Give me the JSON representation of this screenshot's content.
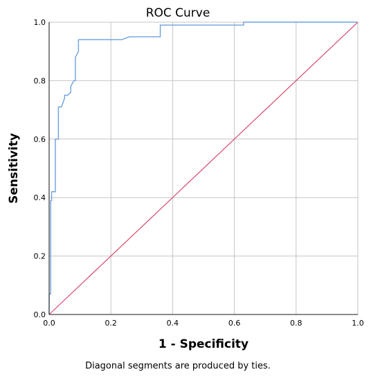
{
  "chart_data": {
    "type": "line",
    "title": "ROC Curve",
    "xlabel": "1 - Specificity",
    "ylabel": "Sensitivity",
    "xlim": [
      0.0,
      1.0
    ],
    "ylim": [
      0.0,
      1.0
    ],
    "x_ticks": [
      "0.0",
      "0.2",
      "0.4",
      "0.6",
      "0.8",
      "1.0"
    ],
    "y_ticks": [
      "0.0",
      "0.2",
      "0.4",
      "0.6",
      "0.8",
      "1.0"
    ],
    "grid": true,
    "footnote": "Diagonal segments are produced by ties.",
    "series": [
      {
        "color": "#6fa0dc",
        "x": [
          0.0,
          0.0,
          0.005,
          0.005,
          0.008,
          0.008,
          0.02,
          0.02,
          0.03,
          0.03,
          0.04,
          0.05,
          0.05,
          0.06,
          0.07,
          0.07,
          0.08,
          0.085,
          0.085,
          0.095,
          0.095,
          0.235,
          0.26,
          0.36,
          0.36,
          0.62,
          0.63,
          0.63,
          1.0
        ],
        "y": [
          0.0,
          0.07,
          0.07,
          0.39,
          0.39,
          0.42,
          0.42,
          0.6,
          0.6,
          0.71,
          0.71,
          0.74,
          0.75,
          0.75,
          0.76,
          0.78,
          0.8,
          0.8,
          0.88,
          0.9,
          0.94,
          0.94,
          0.95,
          0.95,
          0.99,
          0.99,
          0.99,
          1.0,
          1.0
        ]
      },
      {
        "color": "#d6476b",
        "x": [
          0.0,
          1.0
        ],
        "y": [
          0.0,
          1.0
        ]
      }
    ]
  }
}
